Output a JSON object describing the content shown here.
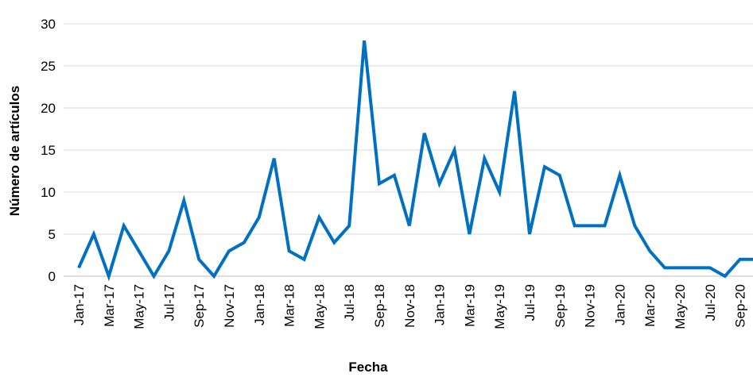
{
  "chart_data": {
    "type": "line",
    "x_label": "Fecha",
    "y_label": "Número de artículos",
    "categories": [
      "Jan-17",
      null,
      "Mar-17",
      null,
      "May-17",
      null,
      "Jul-17",
      null,
      "Sep-17",
      null,
      "Nov-17",
      null,
      "Jan-18",
      null,
      "Mar-18",
      null,
      "May-18",
      null,
      "Jul-18",
      null,
      "Sep-18",
      null,
      "Nov-18",
      null,
      "Jan-19",
      null,
      "Mar-19",
      null,
      "May-19",
      null,
      "Jul-19",
      null,
      "Sep-19",
      null,
      "Nov-19",
      null,
      "Jan-20",
      null,
      "Mar-20",
      null,
      "May-20",
      null,
      "Jul-20",
      null,
      "Sep-20",
      null
    ],
    "series": [
      {
        "name": "Número de artículos",
        "color": "#0070c0",
        "values": [
          1,
          5,
          0,
          6,
          3,
          0,
          3,
          9,
          2,
          0,
          3,
          4,
          7,
          14,
          3,
          2,
          7,
          4,
          6,
          28,
          11,
          12,
          6,
          17,
          11,
          15,
          5,
          14,
          10,
          22,
          5,
          13,
          12,
          6,
          6,
          6,
          12,
          6,
          3,
          1,
          1,
          1,
          1,
          0,
          2,
          2
        ]
      }
    ],
    "ylim": [
      0,
      30
    ],
    "yticks": [
      0,
      5,
      10,
      15,
      20,
      25,
      30
    ],
    "grid": true
  }
}
